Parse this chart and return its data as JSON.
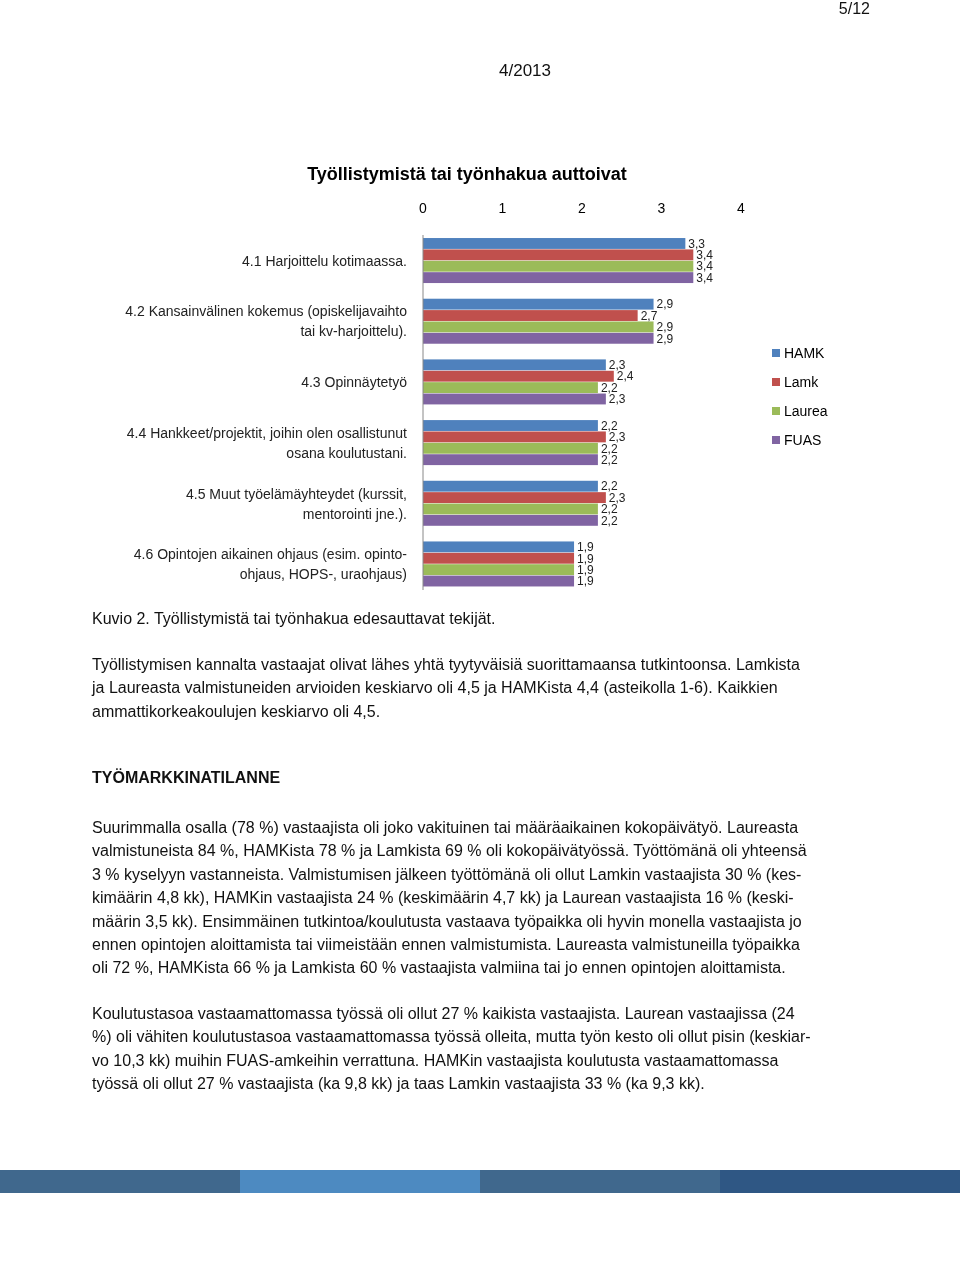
{
  "chart_data": {
    "type": "bar",
    "orientation": "horizontal",
    "title": "Työllistymistä tai työnhakua auttoivat",
    "categories": [
      "4.1 Harjoittelu kotimaassa.",
      "4.2 Kansainvälinen kokemus (opiskelijavaihto\ntai kv-harjoittelu).",
      "4.3 Opinnäytetyö",
      "4.4 Hankkeet/projektit, joihin olen osallistunut\nosana koulutustani.",
      "4.5 Muut työelämäyhteydet (kurssit,\nmentorointi jne.).",
      "4.6 Opintojen aikainen ohjaus (esim. opinto-\nohjaus, HOPS-, uraohjaus)"
    ],
    "series": [
      {
        "name": "HAMK",
        "color": "#4f81bd",
        "values": [
          3.3,
          2.9,
          2.3,
          2.2,
          2.2,
          1.9
        ],
        "value_labels": [
          "3,3",
          "2,9",
          "2,3",
          "2,2",
          "2,2",
          "1,9"
        ]
      },
      {
        "name": "Lamk",
        "color": "#c0504d",
        "values": [
          3.4,
          2.7,
          2.4,
          2.3,
          2.3,
          1.9
        ],
        "value_labels": [
          "3,4",
          "2,7",
          "2,4",
          "2,3",
          "2,3",
          "1,9"
        ]
      },
      {
        "name": "Laurea",
        "color": "#9bbb59",
        "values": [
          3.4,
          2.9,
          2.2,
          2.2,
          2.2,
          1.9
        ],
        "value_labels": [
          "3,4",
          "2,9",
          "2,2",
          "2,2",
          "2,2",
          "1,9"
        ]
      },
      {
        "name": "FUAS",
        "color": "#8064a2",
        "values": [
          3.4,
          2.9,
          2.3,
          2.2,
          2.2,
          1.9
        ],
        "value_labels": [
          "3,4",
          "2,9",
          "2,3",
          "2,2",
          "2,2",
          "1,9"
        ]
      }
    ],
    "xlim": [
      0,
      4
    ],
    "xticks": [
      0,
      1,
      2,
      3,
      4
    ],
    "grid": false,
    "legend": "right",
    "annotations": [
      "5/12",
      "4/2013",
      "Kuvio 2. Työllistymistä tai työnhakua edesauttavat tekijät.",
      "Työllistymisen kannalta vastaajat olivat lähes yhtä tyytyväisiä suorittamaansa tutkintoonsa. Lamkista\nja Laureasta valmistuneiden arvioiden keskiarvo oli 4,5 ja HAMKista 4,4 (asteikolla 1-6).  Kaikkien\nammattikorkeakoulujen keskiarvo oli 4,5.",
      "TYÖMARKKINATILANNE",
      "Suurimmalla osalla (78 %) vastaajista oli joko vakituinen tai määräaikainen kokopäivätyö. Laureasta\nvalmistuneista 84 %, HAMKista 78 % ja Lamkista 69 % oli kokopäivätyössä. Työttömänä oli yhteensä\n3 % kyselyyn vastanneista. Valmistumisen jälkeen työttömänä oli ollut Lamkin vastaajista 30 % (kes-\nkimäärin 4,8 kk), HAMKin vastaajista 24 % (keskimäärin 4,7 kk) ja Laurean vastaajista 16 % (keski-\nmäärin 3,5 kk). Ensimmäinen tutkintoa/koulutusta vastaava työpaikka oli hyvin monella vastaajista jo\nennen opintojen aloittamista tai viimeistään ennen valmistumista. Laureasta valmistuneilla työpaikka\noli 72 %, HAMKista 66 % ja Lamkista 60 % vastaajista valmiina tai jo ennen opintojen aloittamista.",
      "Koulutustasoa vastaamattomassa työssä oli ollut 27 % kaikista vastaajista. Laurean vastaajissa (24\n%) oli vähiten koulutustasoa vastaamattomassa työssä olleita, mutta työn kesto oli ollut pisin (keskiar-\nvo 10,3 kk) muihin FUAS-amkeihin verrattuna. HAMKin vastaajista koulutusta vastaamattomassa\ntyössä oli ollut 27 % vastaajista (ka 9,8 kk) ja taas Lamkin vastaajista 33 % (ka 9,3 kk)."
    ]
  }
}
